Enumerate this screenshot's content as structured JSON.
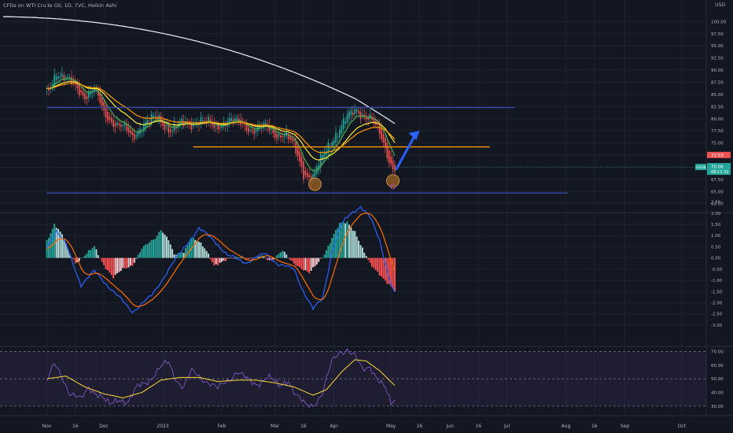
{
  "header": {
    "title": "CFDs on WTI Crude Oil, 1D, TVC, Heikin Ashi",
    "currency": "USD"
  },
  "colors": {
    "bg": "#131722",
    "grid": "#1e222d",
    "bull": "#26a69a",
    "bear": "#ef5350",
    "sma200": "#e0e3eb",
    "ema_fast": "#4caf50",
    "ema_mid": "#ffeb3b",
    "ema_slow": "#ff9800",
    "hline": "#3949ab",
    "support": "#ff9800",
    "arrow": "#2962ff",
    "macd": "#2962ff",
    "signal": "#ff6d00",
    "rsi": "#7e57c2",
    "rsi_ma": "#fdd835"
  },
  "chart_data": [
    {
      "type": "candlestick",
      "title": "CFDs on WTI Crude Oil, 1D, TVC, Heikin Ashi",
      "ylim": [
        61,
        102
      ],
      "y_ticks": [
        "62.50",
        "65.00",
        "67.50",
        "70.00",
        "72.50",
        "75.00",
        "77.50",
        "80.00",
        "82.50",
        "85.00",
        "87.50",
        "90.00",
        "92.50",
        "95.00",
        "97.50",
        "100.00"
      ],
      "x_ticks": [
        "Nov",
        "16",
        "Dec",
        "2023",
        "Feb",
        "Mar",
        "16",
        "Apr",
        "May",
        "16",
        "Jun",
        "16",
        "Jul",
        "Aug",
        "16",
        "Sep",
        "Oct"
      ],
      "x_tick_days": [
        0,
        15,
        30,
        61,
        92,
        120,
        135,
        151,
        181,
        196,
        212,
        227,
        242,
        273,
        288,
        304,
        334
      ],
      "anchor_prices": [
        [
          0,
          85
        ],
        [
          5,
          90
        ],
        [
          10,
          88
        ],
        [
          20,
          85
        ],
        [
          25,
          86
        ],
        [
          30,
          81
        ],
        [
          40,
          78
        ],
        [
          45,
          76
        ],
        [
          50,
          79
        ],
        [
          58,
          80
        ],
        [
          65,
          78
        ],
        [
          75,
          79
        ],
        [
          80,
          80
        ],
        [
          88,
          78
        ],
        [
          95,
          80
        ],
        [
          100,
          79
        ],
        [
          108,
          78
        ],
        [
          115,
          78
        ],
        [
          120,
          77
        ],
        [
          125,
          77
        ],
        [
          130,
          74
        ],
        [
          135,
          69
        ],
        [
          140,
          68
        ],
        [
          145,
          72
        ],
        [
          150,
          76
        ],
        [
          158,
          80
        ],
        [
          163,
          82
        ],
        [
          170,
          80
        ],
        [
          176,
          76
        ],
        [
          180,
          72
        ],
        [
          182,
          70
        ]
      ],
      "price_labels": {
        "symbol": "USOIL",
        "last": "70.06",
        "countdown": "08:11:32",
        "prev": "72.53"
      },
      "horizontal_lines": [
        {
          "name": "resistance",
          "price": 82.3,
          "from_day": 0,
          "to_day": 246,
          "color": "#3949ab"
        },
        {
          "name": "support",
          "price": 74.2,
          "from_day": 77,
          "to_day": 233,
          "color": "#ff9800"
        },
        {
          "name": "lower-support",
          "price": 64.7,
          "from_day": 0,
          "to_day": 274,
          "color": "#3949ab"
        }
      ],
      "marked_lows": [
        {
          "day": 141,
          "price": 66.5
        },
        {
          "day": 182,
          "price": 67.2
        }
      ]
    },
    {
      "type": "histogram",
      "name": "MACD",
      "ylim": [
        -3.6,
        2.8
      ],
      "y_ticks": [
        "2.50",
        "2.00",
        "1.50",
        "1.00",
        "0.50",
        "0.00",
        "-0.50",
        "-1.00",
        "-1.50",
        "-2.00",
        "-2.50",
        "-3.00"
      ],
      "macd_anchors": [
        [
          0,
          0.5
        ],
        [
          5,
          1.2
        ],
        [
          10,
          0.6
        ],
        [
          18,
          -1.2
        ],
        [
          25,
          -0.6
        ],
        [
          35,
          -1.5
        ],
        [
          45,
          -2.4
        ],
        [
          55,
          -1.7
        ],
        [
          65,
          -0.4
        ],
        [
          75,
          0.8
        ],
        [
          80,
          1.3
        ],
        [
          88,
          0.8
        ],
        [
          95,
          0.1
        ],
        [
          105,
          -0.2
        ],
        [
          115,
          0.2
        ],
        [
          122,
          -0.3
        ],
        [
          130,
          -0.5
        ],
        [
          135,
          -1.5
        ],
        [
          140,
          -2.3
        ],
        [
          145,
          -1.8
        ],
        [
          150,
          0.3
        ],
        [
          155,
          1.5
        ],
        [
          160,
          2.0
        ],
        [
          165,
          2.3
        ],
        [
          170,
          1.8
        ],
        [
          175,
          0.8
        ],
        [
          180,
          -0.9
        ],
        [
          183,
          -1.6
        ]
      ],
      "hist_anchors": [
        [
          0,
          0.8
        ],
        [
          4,
          1.5
        ],
        [
          8,
          1.0
        ],
        [
          12,
          0.2
        ],
        [
          15,
          -0.2
        ],
        [
          20,
          0.1
        ],
        [
          25,
          0.5
        ],
        [
          30,
          -0.3
        ],
        [
          35,
          -0.9
        ],
        [
          40,
          -0.5
        ],
        [
          45,
          -0.3
        ],
        [
          50,
          0.4
        ],
        [
          57,
          0.9
        ],
        [
          60,
          1.3
        ],
        [
          64,
          0.8
        ],
        [
          67,
          0.1
        ],
        [
          72,
          0.3
        ],
        [
          76,
          0.9
        ],
        [
          80,
          0.7
        ],
        [
          84,
          0.3
        ],
        [
          88,
          -0.3
        ],
        [
          95,
          -0.1
        ],
        [
          102,
          0.1
        ],
        [
          108,
          -0.1
        ],
        [
          113,
          0.1
        ],
        [
          118,
          -0.1
        ],
        [
          124,
          0.3
        ],
        [
          128,
          -0.1
        ],
        [
          133,
          -0.4
        ],
        [
          138,
          -0.7
        ],
        [
          142,
          -0.3
        ],
        [
          146,
          0.2
        ],
        [
          150,
          0.9
        ],
        [
          154,
          1.5
        ],
        [
          158,
          1.6
        ],
        [
          162,
          1.2
        ],
        [
          166,
          0.4
        ],
        [
          170,
          -0.3
        ],
        [
          175,
          -0.7
        ],
        [
          180,
          -1.2
        ],
        [
          183,
          -1.5
        ]
      ]
    },
    {
      "type": "line",
      "name": "RSI",
      "ylim": [
        27,
        72
      ],
      "y_ticks": [
        "70.00",
        "60.00",
        "50.00",
        "40.00",
        "30.00"
      ],
      "band": [
        30,
        70
      ],
      "rsi_anchors": [
        [
          0,
          48
        ],
        [
          4,
          60
        ],
        [
          8,
          52
        ],
        [
          12,
          40
        ],
        [
          18,
          34
        ],
        [
          22,
          44
        ],
        [
          28,
          38
        ],
        [
          33,
          30
        ],
        [
          38,
          36
        ],
        [
          43,
          33
        ],
        [
          48,
          44
        ],
        [
          54,
          50
        ],
        [
          60,
          58
        ],
        [
          64,
          62
        ],
        [
          68,
          50
        ],
        [
          72,
          44
        ],
        [
          76,
          55
        ],
        [
          80,
          52
        ],
        [
          85,
          48
        ],
        [
          90,
          42
        ],
        [
          96,
          50
        ],
        [
          100,
          56
        ],
        [
          106,
          48
        ],
        [
          110,
          46
        ],
        [
          116,
          52
        ],
        [
          122,
          44
        ],
        [
          127,
          50
        ],
        [
          131,
          38
        ],
        [
          136,
          30
        ],
        [
          140,
          31
        ],
        [
          145,
          40
        ],
        [
          150,
          62
        ],
        [
          154,
          70
        ],
        [
          158,
          72
        ],
        [
          162,
          66
        ],
        [
          166,
          56
        ],
        [
          170,
          60
        ],
        [
          174,
          50
        ],
        [
          178,
          42
        ],
        [
          181,
          31
        ],
        [
          183,
          36
        ]
      ],
      "rsi_ma_anchors": [
        [
          0,
          50
        ],
        [
          10,
          52
        ],
        [
          20,
          44
        ],
        [
          30,
          39
        ],
        [
          40,
          36
        ],
        [
          50,
          40
        ],
        [
          60,
          49
        ],
        [
          70,
          51
        ],
        [
          80,
          51
        ],
        [
          90,
          48
        ],
        [
          100,
          49
        ],
        [
          110,
          49
        ],
        [
          120,
          47
        ],
        [
          130,
          44
        ],
        [
          140,
          38
        ],
        [
          147,
          42
        ],
        [
          155,
          55
        ],
        [
          162,
          64
        ],
        [
          168,
          63
        ],
        [
          175,
          56
        ],
        [
          183,
          45
        ]
      ]
    }
  ]
}
